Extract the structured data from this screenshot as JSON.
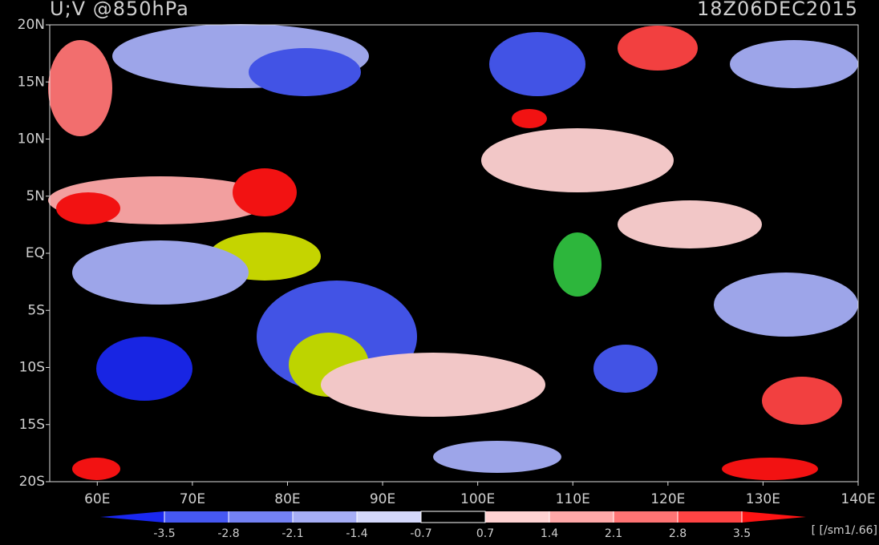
{
  "chart_data": {
    "type": "contour-map",
    "title": "U;V @850hPa",
    "subtitle": "18Z06DEC2015",
    "xlim": [
      55,
      140
    ],
    "ylim": [
      -20,
      20
    ],
    "xticks": [
      {
        "value": 60,
        "label": "60E"
      },
      {
        "value": 70,
        "label": "70E"
      },
      {
        "value": 80,
        "label": "80E"
      },
      {
        "value": 90,
        "label": "90E"
      },
      {
        "value": 100,
        "label": "100E"
      },
      {
        "value": 110,
        "label": "110E"
      },
      {
        "value": 120,
        "label": "120E"
      },
      {
        "value": 130,
        "label": "130E"
      },
      {
        "value": 140,
        "label": "140E"
      }
    ],
    "yticks": [
      {
        "value": 20,
        "label": "20N"
      },
      {
        "value": 15,
        "label": "15N"
      },
      {
        "value": 10,
        "label": "10N"
      },
      {
        "value": 5,
        "label": "5N"
      },
      {
        "value": 0,
        "label": "EQ"
      },
      {
        "value": -5,
        "label": "5S"
      },
      {
        "value": -10,
        "label": "10S"
      },
      {
        "value": -15,
        "label": "15S"
      },
      {
        "value": -20,
        "label": "20S"
      }
    ],
    "colorbar": {
      "levels": [
        -3.5,
        -2.8,
        -2.1,
        -1.4,
        -0.7,
        0.7,
        1.4,
        2.1,
        2.8,
        3.5
      ],
      "colors": [
        "#1a28f0",
        "#4658f2",
        "#7482f4",
        "#a6aef6",
        "#d4d8fb",
        "#000000",
        "#ffd2d2",
        "#ffa8a8",
        "#ff7474",
        "#ff4444",
        "#ff1414"
      ],
      "unit": "[ [/sm1/.66]"
    }
  }
}
